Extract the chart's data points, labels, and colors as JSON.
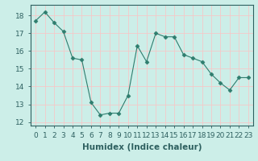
{
  "x": [
    0,
    1,
    2,
    3,
    4,
    5,
    6,
    7,
    8,
    9,
    10,
    11,
    12,
    13,
    14,
    15,
    16,
    17,
    18,
    19,
    20,
    21,
    22,
    23
  ],
  "y": [
    17.7,
    18.2,
    17.6,
    17.1,
    15.6,
    15.5,
    13.1,
    12.4,
    12.5,
    12.5,
    13.5,
    16.3,
    15.4,
    17.0,
    16.8,
    16.8,
    15.8,
    15.6,
    15.4,
    14.7,
    14.2,
    13.8,
    14.5,
    14.5
  ],
  "xlabel": "Humidex (Indice chaleur)",
  "ylim": [
    11.8,
    18.6
  ],
  "xlim": [
    -0.5,
    23.5
  ],
  "yticks": [
    12,
    13,
    14,
    15,
    16,
    17,
    18
  ],
  "xticks": [
    0,
    1,
    2,
    3,
    4,
    5,
    6,
    7,
    8,
    9,
    10,
    11,
    12,
    13,
    14,
    15,
    16,
    17,
    18,
    19,
    20,
    21,
    22,
    23
  ],
  "line_color": "#2e7d6e",
  "marker": "D",
  "marker_size": 2.5,
  "bg_color": "#cceee8",
  "grid_color": "#f5c8c8",
  "axis_color": "#2e6060",
  "tick_fontsize": 6.5,
  "label_fontsize": 7.5
}
